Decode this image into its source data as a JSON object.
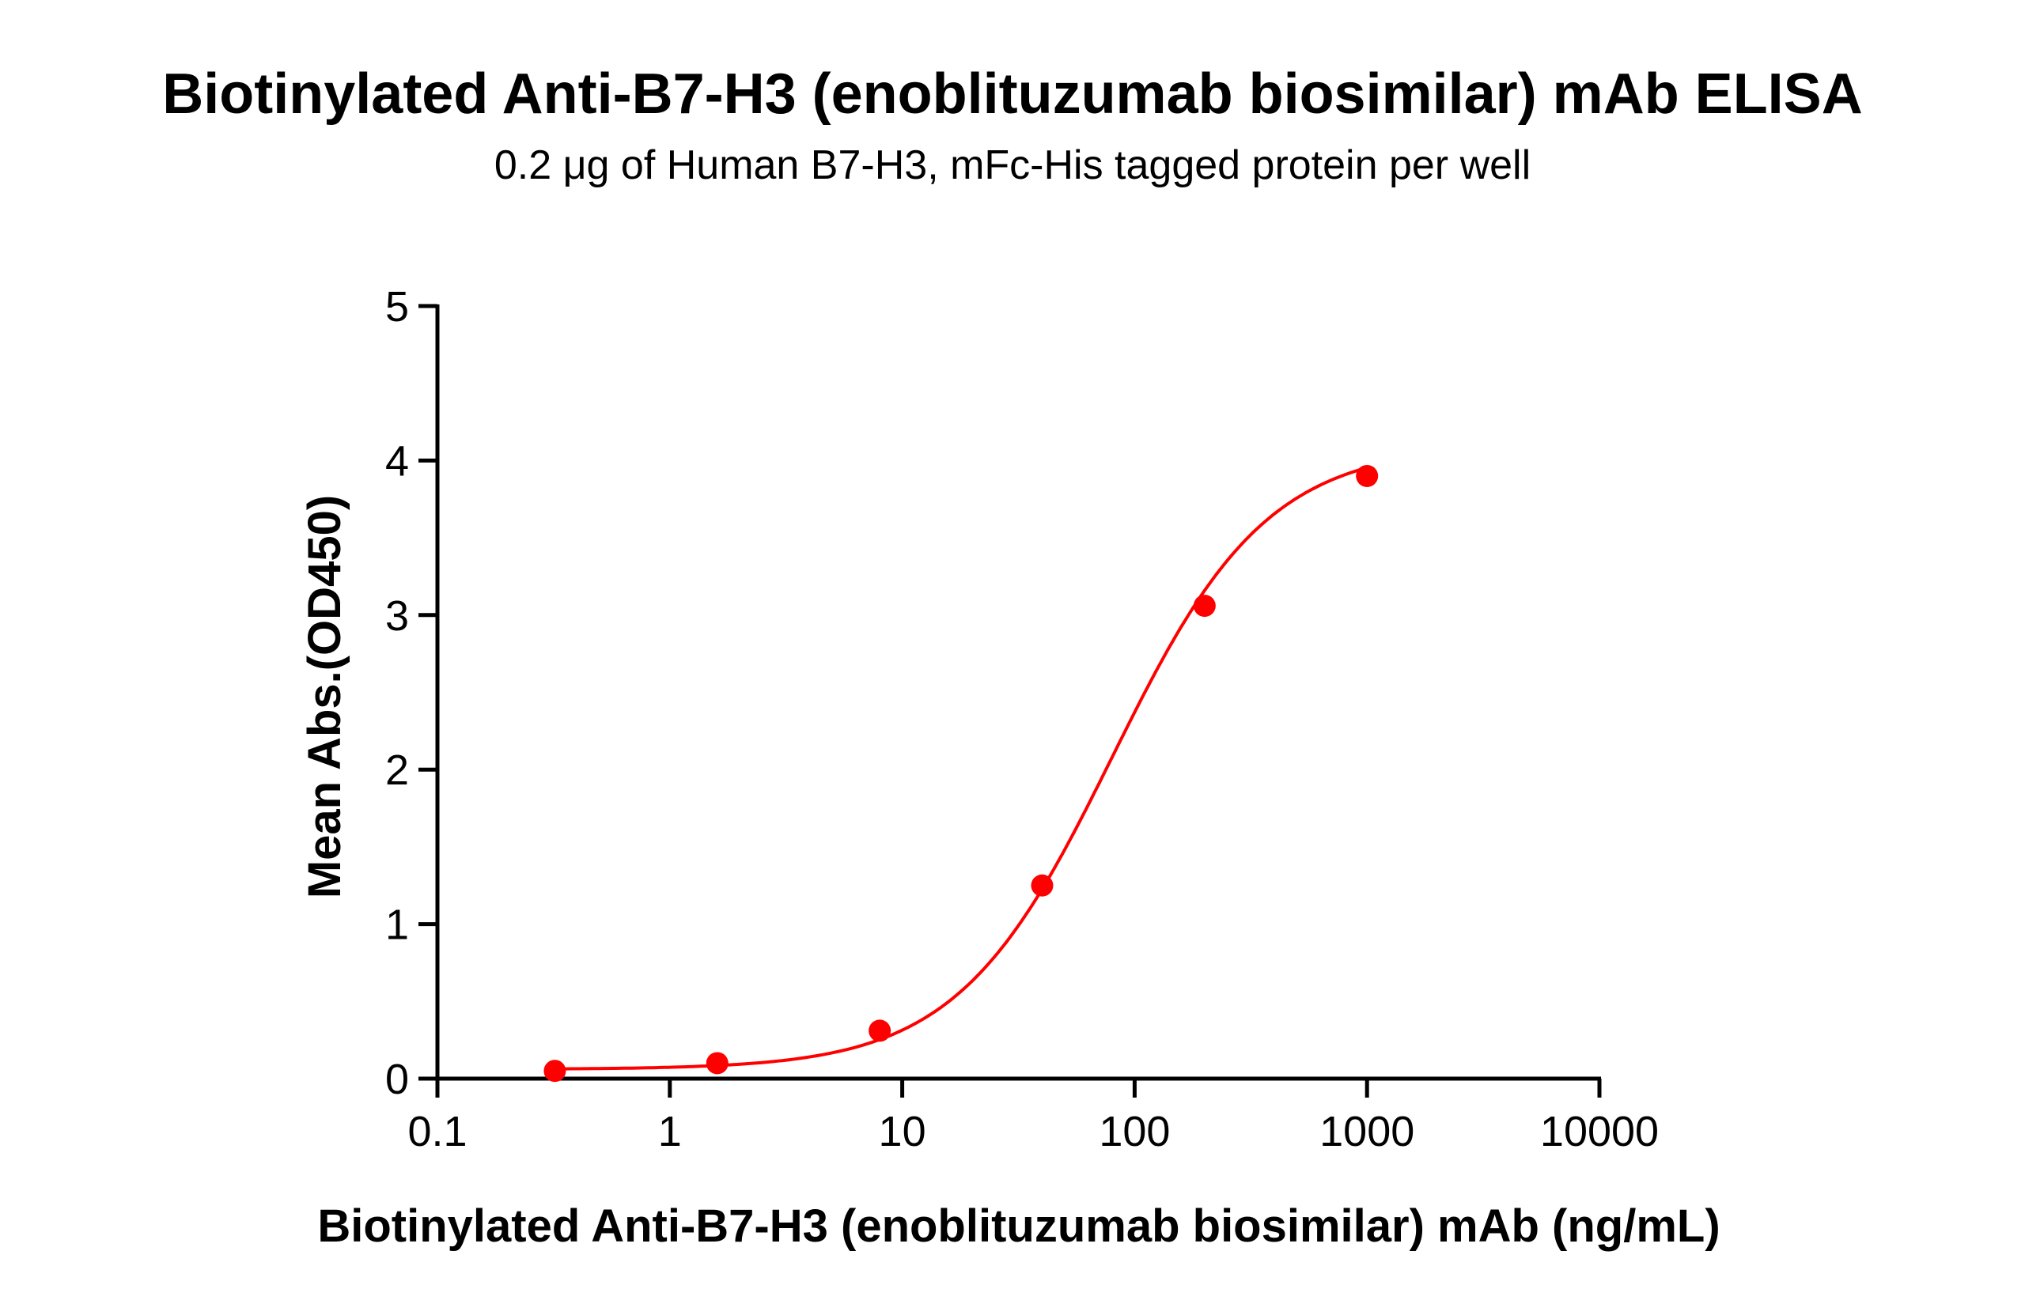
{
  "chart_data": {
    "type": "scatter",
    "title": "Biotinylated Anti-B7-H3 (enoblituzumab biosimilar) mAb ELISA",
    "subtitle": "0.2 μg of Human B7-H3, mFc-His tagged protein per well",
    "xlabel": "Biotinylated Anti-B7-H3 (enoblituzumab biosimilar) mAb (ng/mL)",
    "ylabel": "Mean Abs.(OD450)",
    "xscale": "log",
    "xlim": [
      0.1,
      10000
    ],
    "ylim": [
      0,
      5
    ],
    "xticks": [
      "0.1",
      "1",
      "10",
      "100",
      "1000",
      "10000"
    ],
    "yticks": [
      "0",
      "1",
      "2",
      "3",
      "4",
      "5"
    ],
    "grid": false,
    "fit_curve": "sigmoidal",
    "color": "#ff0000",
    "x": [
      0.32,
      1.6,
      8,
      40,
      200,
      1000
    ],
    "y": [
      0.05,
      0.1,
      0.31,
      1.25,
      3.06,
      3.9
    ]
  }
}
